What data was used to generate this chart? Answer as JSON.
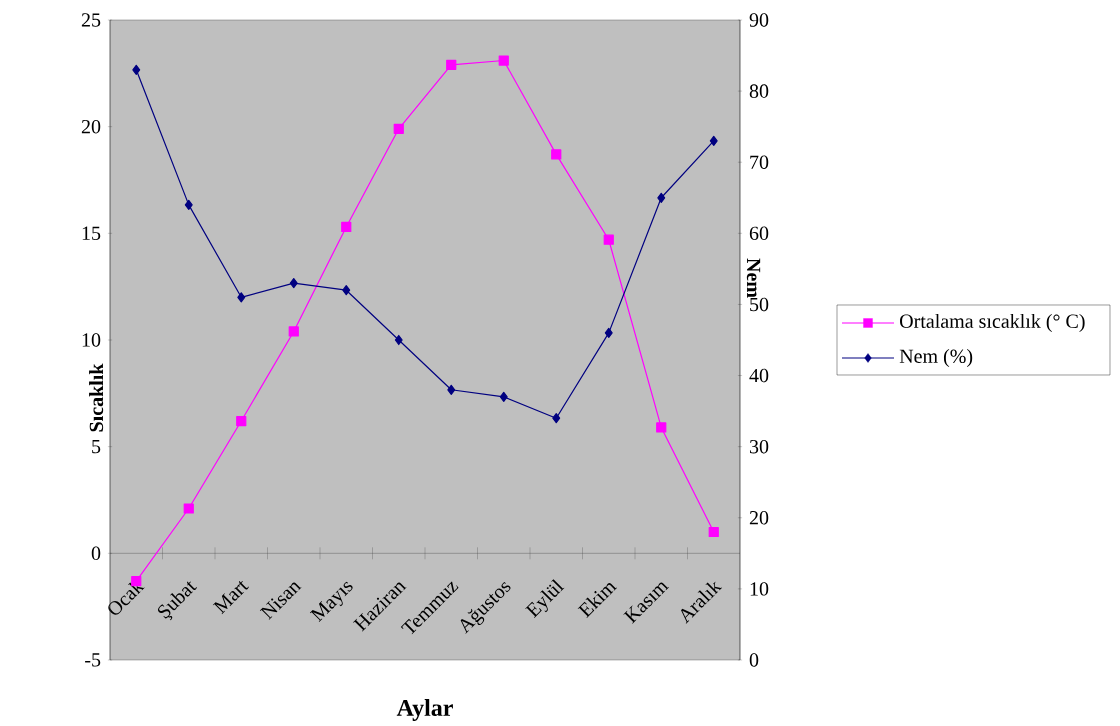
{
  "chart_data": {
    "type": "line",
    "xlabel": "Aylar",
    "ylabel": "Sıcaklık",
    "y2label": "Nem",
    "categories": [
      "Ocak",
      "Şubat",
      "Mart",
      "Nisan",
      "Mayıs",
      "Haziran",
      "Temmuz",
      "Ağustos",
      "Eylül",
      "Ekim",
      "Kasım",
      "Aralık"
    ],
    "series": [
      {
        "name": "Ortalama sıcaklık (° C)",
        "color": "#ff00ff",
        "marker": "square",
        "values": [
          -1.3,
          2.1,
          6.2,
          10.4,
          15.3,
          19.9,
          22.9,
          23.1,
          18.7,
          14.7,
          5.9,
          1.0
        ]
      },
      {
        "name": "Nem (%)",
        "color": "#000080",
        "marker": "diamond",
        "axis": "y2",
        "values": [
          83,
          64,
          51,
          53,
          52,
          45,
          38,
          37,
          34,
          46,
          65,
          73
        ]
      }
    ],
    "ylim": [
      -5,
      25
    ],
    "yticks": [
      -5,
      0,
      5,
      10,
      15,
      20,
      25
    ],
    "y2lim": [
      0,
      90
    ],
    "y2ticks": [
      0,
      10,
      20,
      30,
      40,
      50,
      60,
      70,
      80,
      90
    ],
    "legend": "right",
    "grid": false
  }
}
